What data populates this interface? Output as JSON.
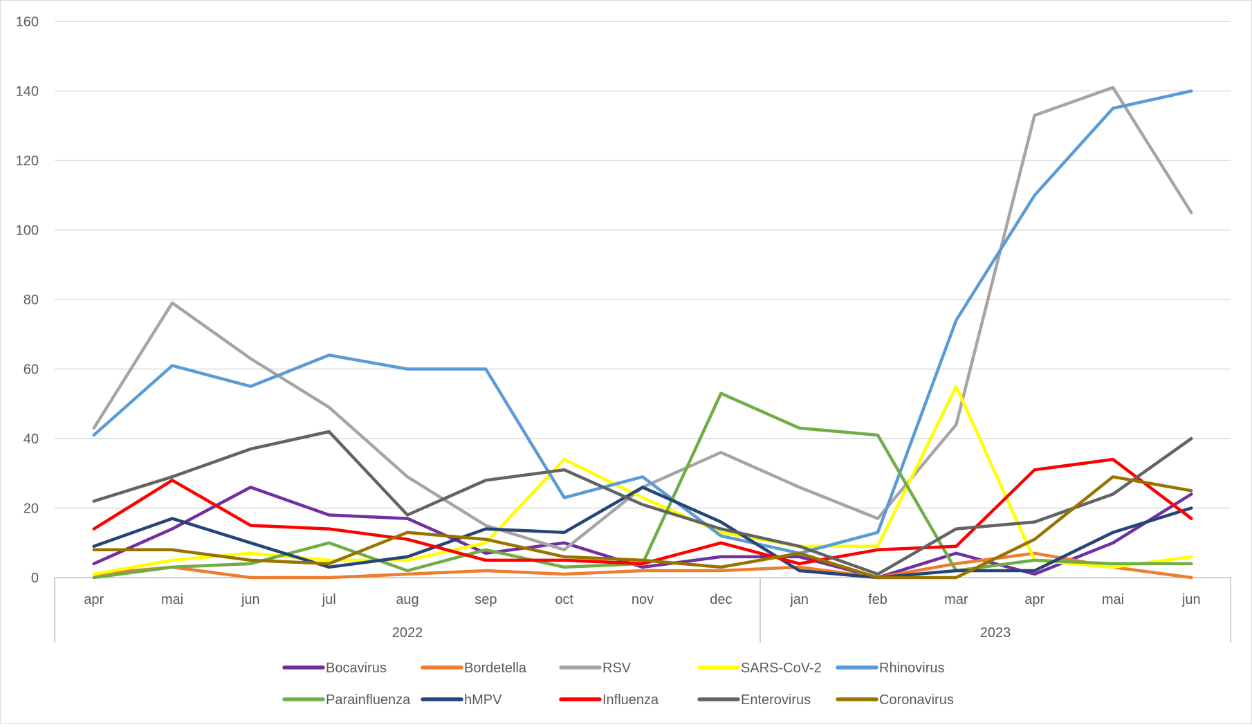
{
  "chart_data": {
    "type": "line",
    "title": "",
    "xlabel": "",
    "ylabel": "",
    "ylim": [
      0,
      160
    ],
    "yticks": [
      0,
      20,
      40,
      60,
      80,
      100,
      120,
      140,
      160
    ],
    "grid": true,
    "legend_position": "bottom",
    "categories": [
      "apr",
      "mai",
      "jun",
      "jul",
      "aug",
      "sep",
      "oct",
      "nov",
      "dec",
      "jan",
      "feb",
      "mar",
      "apr",
      "mai",
      "jun"
    ],
    "groups": [
      {
        "label": "2022",
        "start": 0,
        "end": 8
      },
      {
        "label": "2023",
        "start": 9,
        "end": 14
      }
    ],
    "series": [
      {
        "name": "Bocavirus",
        "color": "#7030a0",
        "values": [
          4,
          14,
          26,
          18,
          17,
          7,
          10,
          3,
          6,
          6,
          0,
          7,
          1,
          10,
          24
        ]
      },
      {
        "name": "Bordetella",
        "color": "#ed7d31",
        "values": [
          1,
          3,
          0,
          0,
          1,
          2,
          1,
          2,
          2,
          3,
          0,
          4,
          7,
          3,
          0
        ]
      },
      {
        "name": "RSV",
        "color": "#a5a5a5",
        "values": [
          43,
          79,
          63,
          49,
          29,
          15,
          8,
          26,
          36,
          26,
          17,
          44,
          133,
          141,
          105
        ]
      },
      {
        "name": "SARS-CoV-2",
        "color": "#ffff00",
        "values": [
          1,
          5,
          7,
          5,
          5,
          10,
          34,
          23,
          13,
          9,
          9,
          55,
          5,
          3,
          6
        ]
      },
      {
        "name": "Rhinovirus",
        "color": "#5b9bd5",
        "values": [
          41,
          61,
          55,
          64,
          60,
          60,
          23,
          29,
          12,
          7,
          13,
          74,
          110,
          135,
          140
        ]
      },
      {
        "name": "Parainfluenza",
        "color": "#70ad47",
        "values": [
          0,
          3,
          4,
          10,
          2,
          8,
          3,
          4,
          53,
          43,
          41,
          2,
          5,
          4,
          4
        ]
      },
      {
        "name": "hMPV",
        "color": "#264478",
        "values": [
          9,
          17,
          10,
          3,
          6,
          14,
          13,
          26,
          16,
          2,
          0,
          2,
          2,
          13,
          20
        ]
      },
      {
        "name": "Influenza",
        "color": "#ff0000",
        "values": [
          14,
          28,
          15,
          14,
          11,
          5,
          5,
          4,
          10,
          4,
          8,
          9,
          31,
          34,
          17
        ]
      },
      {
        "name": "Enterovirus",
        "color": "#636363",
        "values": [
          22,
          29,
          37,
          42,
          18,
          28,
          31,
          21,
          14,
          9,
          1,
          14,
          16,
          24,
          40
        ]
      },
      {
        "name": "Coronavirus",
        "color": "#997300",
        "values": [
          8,
          8,
          5,
          4,
          13,
          11,
          6,
          5,
          3,
          7,
          0,
          0,
          11,
          29,
          25
        ]
      }
    ]
  }
}
